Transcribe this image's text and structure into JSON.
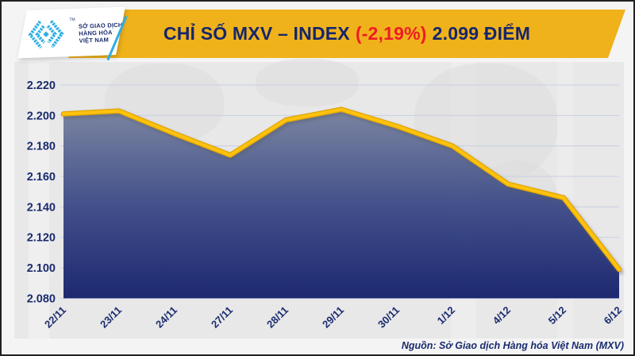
{
  "header": {
    "logo": {
      "icon": "mxv-chevron-logo-icon",
      "icon_color": "#2faee3",
      "line1": "SỞ GIAO DỊCH",
      "line2": "HÀNG HÓA",
      "line3": "VIỆT NAM",
      "tm": "TM"
    },
    "banner_color": "#f0b21b",
    "title": {
      "part1": "CHỈ SỐ MXV – INDEX",
      "change": "(-2,19%)",
      "part3": "2.099 ĐIỂM",
      "title_color": "#15266d",
      "change_color": "#ee1c25"
    }
  },
  "chart_data": {
    "type": "area",
    "title": "CHỈ SỐ MXV – INDEX",
    "series_name": "MXV-Index",
    "categories": [
      "22/11",
      "23/11",
      "24/11",
      "27/11",
      "28/11",
      "29/11",
      "30/11",
      "1/12",
      "4/12",
      "5/12",
      "6/12"
    ],
    "values": [
      2201,
      2203,
      2188,
      2174,
      2197,
      2204,
      2193,
      2180,
      2155,
      2146,
      2099
    ],
    "last_value_label": "2.099",
    "change_percent": "-2,19%",
    "xlabel": "",
    "ylabel": "",
    "ylim": [
      2080,
      2220
    ],
    "ytick_step": 20,
    "ytick_labels": [
      "2.220",
      "2.200",
      "2.180",
      "2.160",
      "2.140",
      "2.120",
      "2.100",
      "2.080"
    ],
    "grid": "horizontal",
    "legend": "none",
    "line_color": "#ffc30b",
    "line_edge_color": "#dfa300",
    "area_gradient_top": "#76819e",
    "area_gradient_bottom": "#15216b",
    "tick_label_color": "#1a2b6d",
    "gridline_color": "#c9cfe2"
  },
  "footer": {
    "source": "Nguồn: Sở Giao dịch Hàng hóa Việt Nam (MXV)"
  }
}
